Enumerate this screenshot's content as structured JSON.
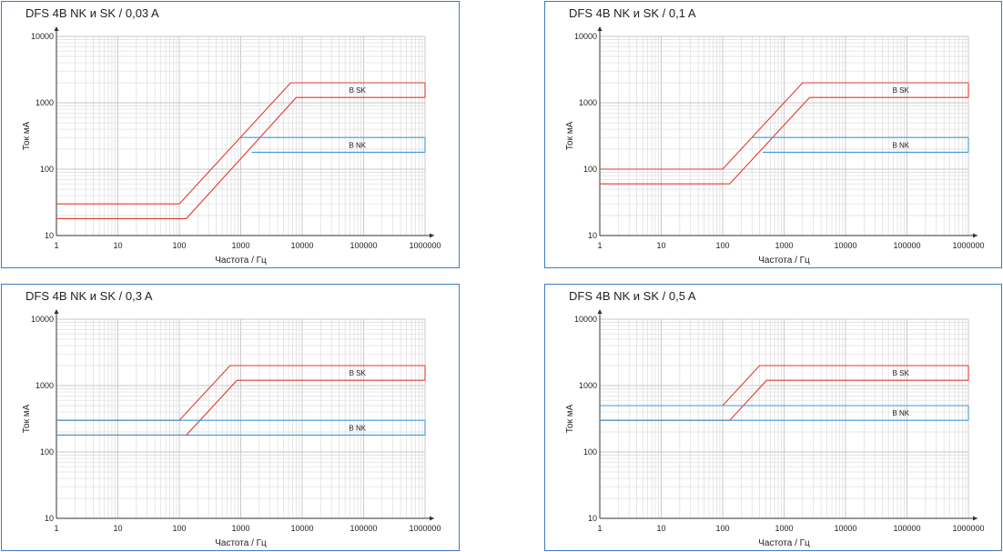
{
  "chart_data": [
    {
      "type": "line",
      "title": "DFS 4B NK и SK / 0,03 A",
      "xlabel": "Частота / Гц",
      "ylabel": "Ток мА",
      "x_scale": "log",
      "y_scale": "log",
      "xlim": [
        1,
        1000000
      ],
      "ylim": [
        10,
        10000
      ],
      "x_ticks": [
        "1",
        "10",
        "100",
        "1000",
        "10000",
        "100000",
        "1000000"
      ],
      "y_ticks": [
        "10000",
        "1000",
        "100",
        "10"
      ],
      "grid": true,
      "series": [
        {
          "name": "B SK",
          "color": "#e03a2e",
          "upper": {
            "x": [
              1,
              100,
              6500,
              1000000
            ],
            "y": [
              30,
              30,
              2000,
              2000
            ]
          },
          "lower": {
            "x": [
              1,
              130,
              8000,
              1000000
            ],
            "y": [
              18,
              18,
              1200,
              1200
            ]
          }
        },
        {
          "name": "B NK",
          "color": "#3a9bd6",
          "upper": {
            "x": [
              1000,
              1000000
            ],
            "y": [
              300,
              300
            ]
          },
          "lower": {
            "x": [
              1500,
              1000000
            ],
            "y": [
              180,
              180
            ]
          }
        }
      ]
    },
    {
      "type": "line",
      "title": "DFS 4B NK и SK / 0,1 A",
      "xlabel": "Частота / Гц",
      "ylabel": "Ток мА",
      "x_scale": "log",
      "y_scale": "log",
      "xlim": [
        1,
        1000000
      ],
      "ylim": [
        10,
        10000
      ],
      "x_ticks": [
        "1",
        "10",
        "100",
        "1000",
        "10000",
        "100000",
        "1000000"
      ],
      "y_ticks": [
        "10000",
        "1000",
        "100",
        "10"
      ],
      "grid": true,
      "series": [
        {
          "name": "B SK",
          "color": "#e03a2e",
          "upper": {
            "x": [
              1,
              100,
              2000,
              1000000
            ],
            "y": [
              100,
              100,
              2000,
              2000
            ]
          },
          "lower": {
            "x": [
              1,
              130,
              2600,
              1000000
            ],
            "y": [
              60,
              60,
              1200,
              1200
            ]
          }
        },
        {
          "name": "B NK",
          "color": "#3a9bd6",
          "upper": {
            "x": [
              300,
              1000000
            ],
            "y": [
              300,
              300
            ]
          },
          "lower": {
            "x": [
              450,
              1000000
            ],
            "y": [
              180,
              180
            ]
          }
        }
      ]
    },
    {
      "type": "line",
      "title": "DFS 4B NK и SK / 0,3 A",
      "xlabel": "Частота / Гц",
      "ylabel": "Ток мА",
      "x_scale": "log",
      "y_scale": "log",
      "xlim": [
        1,
        1000000
      ],
      "ylim": [
        10,
        10000
      ],
      "x_ticks": [
        "1",
        "10",
        "100",
        "1000",
        "10000",
        "100000",
        "1000000"
      ],
      "y_ticks": [
        "10000",
        "1000",
        "100",
        "10"
      ],
      "grid": true,
      "series": [
        {
          "name": "B SK",
          "color": "#e03a2e",
          "upper": {
            "x": [
              1,
              100,
              670,
              1000000
            ],
            "y": [
              300,
              300,
              2000,
              2000
            ]
          },
          "lower": {
            "x": [
              1,
              130,
              870,
              1000000
            ],
            "y": [
              180,
              180,
              1200,
              1200
            ]
          }
        },
        {
          "name": "B NK",
          "color": "#3a9bd6",
          "upper": {
            "x": [
              1,
              1000000
            ],
            "y": [
              300,
              300
            ]
          },
          "lower": {
            "x": [
              1,
              1000000
            ],
            "y": [
              180,
              180
            ]
          }
        }
      ]
    },
    {
      "type": "line",
      "title": "DFS 4B NK и SK / 0,5 A",
      "xlabel": "Частота / Гц",
      "ylabel": "Ток мА",
      "x_scale": "log",
      "y_scale": "log",
      "xlim": [
        1,
        1000000
      ],
      "ylim": [
        10,
        10000
      ],
      "x_ticks": [
        "1",
        "10",
        "100",
        "1000",
        "10000",
        "100000",
        "1000000"
      ],
      "y_ticks": [
        "10000",
        "1000",
        "100",
        "10"
      ],
      "grid": true,
      "series": [
        {
          "name": "B SK",
          "color": "#e03a2e",
          "upper": {
            "x": [
              1,
              100,
              400,
              1000000
            ],
            "y": [
              500,
              500,
              2000,
              2000
            ]
          },
          "lower": {
            "x": [
              1,
              130,
              520,
              1000000
            ],
            "y": [
              300,
              300,
              1200,
              1200
            ]
          }
        },
        {
          "name": "B NK",
          "color": "#3a9bd6",
          "upper": {
            "x": [
              1,
              1000000
            ],
            "y": [
              500,
              500
            ]
          },
          "lower": {
            "x": [
              1,
              1000000
            ],
            "y": [
              300,
              300
            ]
          }
        }
      ]
    }
  ]
}
